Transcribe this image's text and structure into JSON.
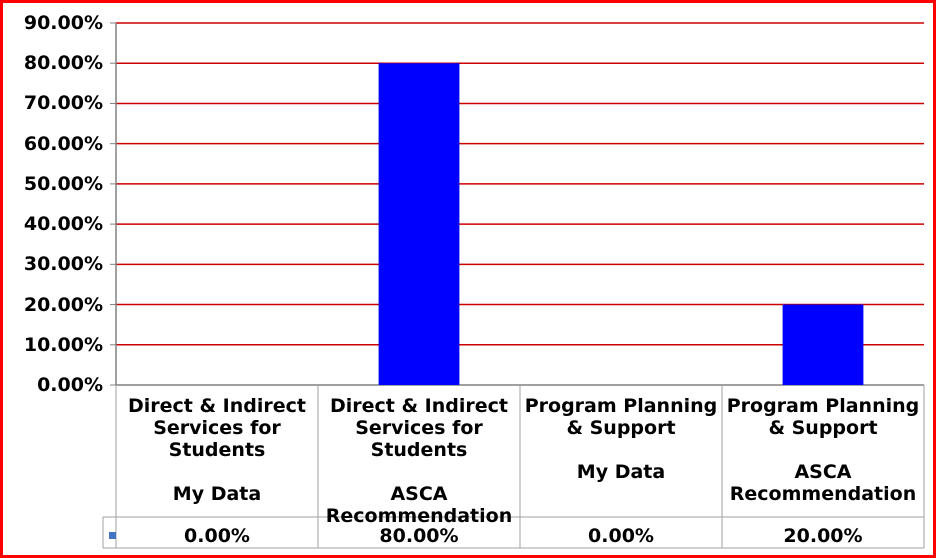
{
  "chart_data": {
    "type": "bar",
    "categories": [
      "Direct & Indirect Services for Students\n\nMy Data",
      "Direct & Indirect Services for Students\n\nASCA Recommendation",
      "Program Planning & Support\n\nMy Data",
      "Program Planning & Support\n\nASCA Recommendation"
    ],
    "values": [
      0.0,
      80.0,
      0.0,
      20.0
    ],
    "value_labels": [
      "0.00%",
      "80.00%",
      "0.00%",
      "20.00%"
    ],
    "y_ticks": [
      "0.00%",
      "10.00%",
      "20.00%",
      "30.00%",
      "40.00%",
      "50.00%",
      "60.00%",
      "70.00%",
      "80.00%",
      "90.00%"
    ],
    "ylim": [
      0,
      90
    ],
    "grid": true,
    "data_table": true,
    "colors": {
      "bar": "#0000ff",
      "grid": "#cc0000",
      "frame": "#ff0000",
      "legend_key": "#4472c4"
    }
  }
}
